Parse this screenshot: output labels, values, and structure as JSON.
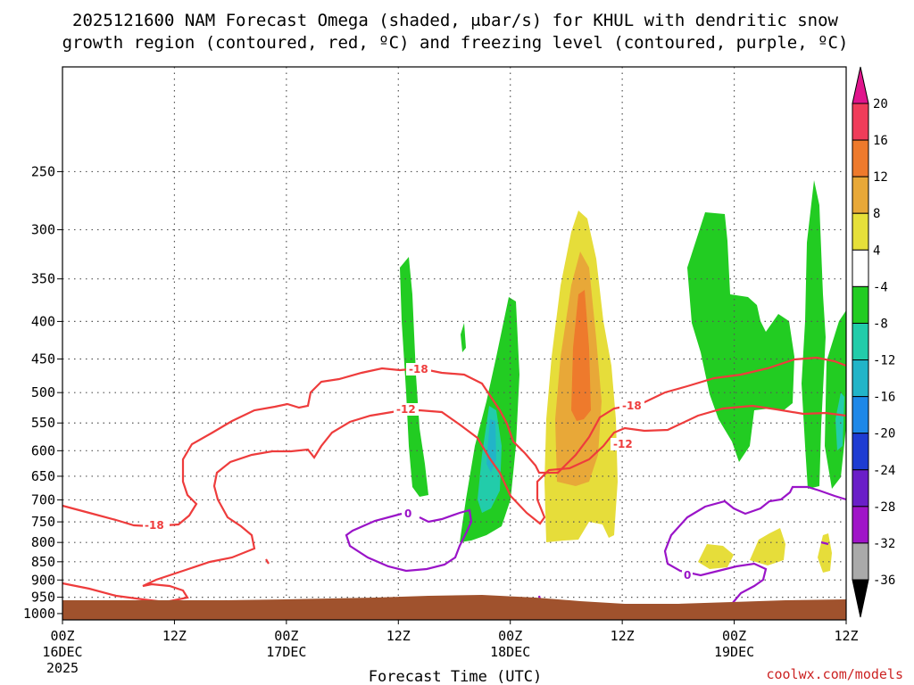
{
  "chart_data": {
    "type": "time-height contour",
    "title_line1": "2025121600 NAM Forecast Omega (shaded, μbar/s) for KHUL with dendritic snow",
    "title_line2": "growth region (contoured, red, ºC) and freezing level (contoured, purple, ºC)",
    "xlabel": "Forecast Time (UTC)",
    "credit": "coolwx.com/models",
    "x_range_hours": [
      0,
      84
    ],
    "y_range_hPa": [
      1020,
      180
    ],
    "x_ticks": [
      {
        "hour": 0,
        "label": "00Z",
        "sub": "16DEC",
        "sub2": "2025"
      },
      {
        "hour": 12,
        "label": "12Z",
        "sub": "",
        "sub2": ""
      },
      {
        "hour": 24,
        "label": "00Z",
        "sub": "17DEC",
        "sub2": ""
      },
      {
        "hour": 36,
        "label": "12Z",
        "sub": "",
        "sub2": ""
      },
      {
        "hour": 48,
        "label": "00Z",
        "sub": "18DEC",
        "sub2": ""
      },
      {
        "hour": 60,
        "label": "12Z",
        "sub": "",
        "sub2": ""
      },
      {
        "hour": 72,
        "label": "00Z",
        "sub": "19DEC",
        "sub2": ""
      },
      {
        "hour": 84,
        "label": "12Z",
        "sub": "",
        "sub2": ""
      }
    ],
    "y_ticks": [
      250,
      300,
      350,
      400,
      450,
      500,
      550,
      600,
      650,
      700,
      750,
      800,
      850,
      900,
      950,
      1000
    ],
    "colorbar": {
      "labels": [
        "20",
        "16",
        "12",
        "8",
        "4",
        "-4",
        "-8",
        "-12",
        "-16",
        "-20",
        "-24",
        "-28",
        "-32",
        "-36"
      ],
      "colors": [
        "#f03c5a",
        "#ee7a2c",
        "#e8a838",
        "#e6e03a",
        "#ffffff",
        "#22cc22",
        "#22ccaa",
        "#22b4c8",
        "#1e88e8",
        "#1e3cd2",
        "#6a1ec8",
        "#a014c8",
        "#aaaaaa"
      ],
      "top_arrow_color": "#e0148c",
      "bottom_arrow_color": "#000000"
    },
    "contour_labels": {
      "dgz_labels": [
        "-18",
        "-12",
        "-18",
        "-12",
        "-18"
      ],
      "freezing_labels": [
        "0",
        "0"
      ]
    },
    "colors": {
      "dgz": "#ee3c3c",
      "freezing": "#9a14c8",
      "terrain": "#a0522d",
      "yellow": "#e6dd3a",
      "gold": "#e8a838",
      "orange": "#ee7a2c",
      "green": "#22cc22",
      "teal": "#22ccaa"
    }
  }
}
